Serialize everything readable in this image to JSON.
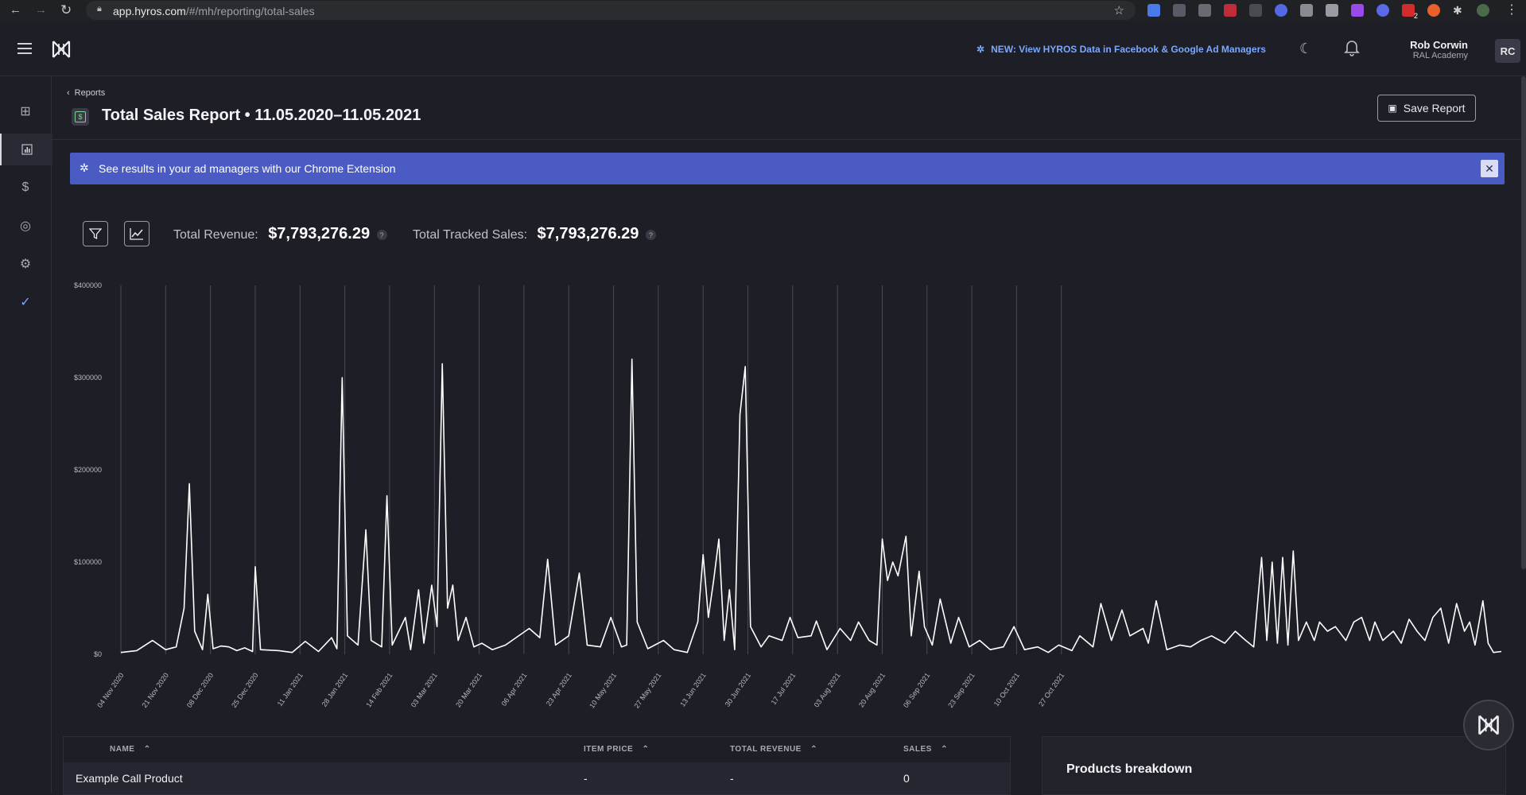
{
  "browser": {
    "url_host": "app.hyros.com",
    "url_path": "/#/mh/reporting/total-sales",
    "ext_badge": "2"
  },
  "header": {
    "announcement": "NEW: View HYROS Data in Facebook & Google Ad Managers",
    "user_name": "Rob Corwin",
    "user_org": "RAL Academy",
    "avatar_initials": "RC"
  },
  "page": {
    "breadcrumb": "Reports",
    "title": "Total Sales Report • 11.05.2020–11.05.2021",
    "save_label": "Save Report"
  },
  "banner": {
    "text": "See results in your ad managers with our Chrome Extension",
    "close_symbol": "✕"
  },
  "kpis": {
    "revenue_label": "Total Revenue:",
    "revenue_value": "$7,793,276.29",
    "tracked_label": "Total Tracked Sales:",
    "tracked_value": "$7,793,276.29",
    "help_symbol": "?"
  },
  "chart_data": {
    "type": "line",
    "x_tick_labels": [
      "04 Nov 2020",
      "21 Nov 2020",
      "08 Dec 2020",
      "25 Dec 2020",
      "11 Jan 2021",
      "28 Jan 2021",
      "14 Feb 2021",
      "03 Mar 2021",
      "20 Mar 2021",
      "06 Apr 2021",
      "23 Apr 2021",
      "10 May 2021",
      "27 May 2021",
      "13 Jun 2021",
      "30 Jun 2021",
      "17 Jul 2021",
      "03 Aug 2021",
      "20 Aug 2021",
      "06 Sep 2021",
      "23 Sep 2021",
      "10 Oct 2021",
      "27 Oct 2021"
    ],
    "y_tick_labels": [
      "$0",
      "$100000",
      "$200000",
      "$300000",
      "$400000"
    ],
    "ylim": [
      0,
      400000
    ],
    "grid": "vertical",
    "series": [
      {
        "line_color": "#ffffff",
        "points": [
          [
            0,
            2000
          ],
          [
            6,
            4000
          ],
          [
            12,
            15000
          ],
          [
            17,
            5000
          ],
          [
            21,
            8000
          ],
          [
            24,
            50000
          ],
          [
            26,
            185000
          ],
          [
            28,
            25000
          ],
          [
            31,
            5000
          ],
          [
            33,
            65000
          ],
          [
            35,
            6000
          ],
          [
            38,
            9000
          ],
          [
            41,
            8000
          ],
          [
            44,
            4000
          ],
          [
            47,
            7000
          ],
          [
            50,
            3000
          ],
          [
            51,
            95000
          ],
          [
            53,
            5000
          ],
          [
            60,
            4000
          ],
          [
            65,
            2000
          ],
          [
            70,
            14000
          ],
          [
            75,
            3000
          ],
          [
            80,
            18000
          ],
          [
            82,
            6000
          ],
          [
            84,
            300000
          ],
          [
            86,
            20000
          ],
          [
            90,
            10000
          ],
          [
            93,
            135000
          ],
          [
            95,
            15000
          ],
          [
            99,
            8000
          ],
          [
            101,
            172000
          ],
          [
            103,
            10000
          ],
          [
            108,
            40000
          ],
          [
            110,
            5000
          ],
          [
            113,
            70000
          ],
          [
            115,
            12000
          ],
          [
            118,
            75000
          ],
          [
            120,
            30000
          ],
          [
            122,
            315000
          ],
          [
            124,
            50000
          ],
          [
            126,
            75000
          ],
          [
            128,
            15000
          ],
          [
            131,
            40000
          ],
          [
            134,
            8000
          ],
          [
            137,
            12000
          ],
          [
            141,
            5000
          ],
          [
            146,
            10000
          ],
          [
            150,
            18000
          ],
          [
            155,
            28000
          ],
          [
            159,
            18000
          ],
          [
            162,
            103000
          ],
          [
            165,
            10000
          ],
          [
            170,
            20000
          ],
          [
            174,
            88000
          ],
          [
            177,
            10000
          ],
          [
            182,
            8000
          ],
          [
            186,
            40000
          ],
          [
            190,
            8000
          ],
          [
            192,
            10000
          ],
          [
            194,
            320000
          ],
          [
            196,
            35000
          ],
          [
            200,
            6000
          ],
          [
            206,
            15000
          ],
          [
            210,
            5000
          ],
          [
            215,
            2000
          ],
          [
            219,
            35000
          ],
          [
            221,
            108000
          ],
          [
            223,
            40000
          ],
          [
            225,
            80000
          ],
          [
            227,
            125000
          ],
          [
            229,
            15000
          ],
          [
            231,
            70000
          ],
          [
            233,
            5000
          ],
          [
            235,
            260000
          ],
          [
            237,
            312000
          ],
          [
            239,
            30000
          ],
          [
            243,
            8000
          ],
          [
            246,
            20000
          ],
          [
            251,
            15000
          ],
          [
            254,
            40000
          ],
          [
            257,
            18000
          ],
          [
            262,
            20000
          ],
          [
            264,
            36000
          ],
          [
            268,
            5000
          ],
          [
            273,
            28000
          ],
          [
            277,
            15000
          ],
          [
            280,
            35000
          ],
          [
            284,
            15000
          ],
          [
            287,
            10000
          ],
          [
            289,
            125000
          ],
          [
            291,
            80000
          ],
          [
            293,
            100000
          ],
          [
            295,
            85000
          ],
          [
            298,
            128000
          ],
          [
            300,
            20000
          ],
          [
            303,
            90000
          ],
          [
            305,
            30000
          ],
          [
            308,
            10000
          ],
          [
            311,
            60000
          ],
          [
            315,
            12000
          ],
          [
            318,
            40000
          ],
          [
            322,
            8000
          ],
          [
            326,
            15000
          ],
          [
            330,
            5000
          ],
          [
            335,
            8000
          ],
          [
            339,
            30000
          ],
          [
            343,
            5000
          ],
          [
            348,
            8000
          ],
          [
            352,
            2000
          ],
          [
            356,
            10000
          ],
          [
            361,
            4000
          ],
          [
            364,
            20000
          ],
          [
            369,
            8000
          ],
          [
            372,
            55000
          ],
          [
            376,
            15000
          ],
          [
            380,
            48000
          ],
          [
            383,
            20000
          ],
          [
            388,
            28000
          ],
          [
            390,
            12000
          ],
          [
            393,
            58000
          ],
          [
            397,
            5000
          ],
          [
            402,
            10000
          ],
          [
            406,
            8000
          ],
          [
            410,
            15000
          ],
          [
            414,
            20000
          ],
          [
            419,
            12000
          ],
          [
            423,
            25000
          ],
          [
            427,
            15000
          ],
          [
            430,
            8000
          ],
          [
            433,
            105000
          ],
          [
            435,
            15000
          ],
          [
            437,
            100000
          ],
          [
            439,
            12000
          ],
          [
            441,
            105000
          ],
          [
            443,
            10000
          ],
          [
            445,
            112000
          ],
          [
            447,
            15000
          ],
          [
            450,
            35000
          ],
          [
            453,
            15000
          ],
          [
            455,
            35000
          ],
          [
            458,
            25000
          ],
          [
            461,
            30000
          ],
          [
            465,
            15000
          ],
          [
            468,
            35000
          ],
          [
            471,
            40000
          ],
          [
            474,
            15000
          ],
          [
            476,
            35000
          ],
          [
            479,
            15000
          ],
          [
            483,
            25000
          ],
          [
            486,
            12000
          ],
          [
            489,
            38000
          ],
          [
            492,
            25000
          ],
          [
            495,
            15000
          ],
          [
            498,
            40000
          ],
          [
            501,
            50000
          ],
          [
            504,
            12000
          ],
          [
            507,
            55000
          ],
          [
            510,
            25000
          ],
          [
            512,
            35000
          ],
          [
            514,
            10000
          ],
          [
            517,
            58000
          ],
          [
            519,
            12000
          ],
          [
            521,
            2000
          ],
          [
            524,
            3000
          ]
        ]
      }
    ]
  },
  "table": {
    "columns": [
      "NAME",
      "ITEM PRICE",
      "TOTAL REVENUE",
      "SALES"
    ],
    "sort_symbol": "⌃",
    "rows": [
      {
        "name": "Example Call Product",
        "item_price": "-",
        "total_revenue": "-",
        "sales": "0"
      }
    ]
  },
  "breakdown": {
    "title": "Products breakdown"
  }
}
